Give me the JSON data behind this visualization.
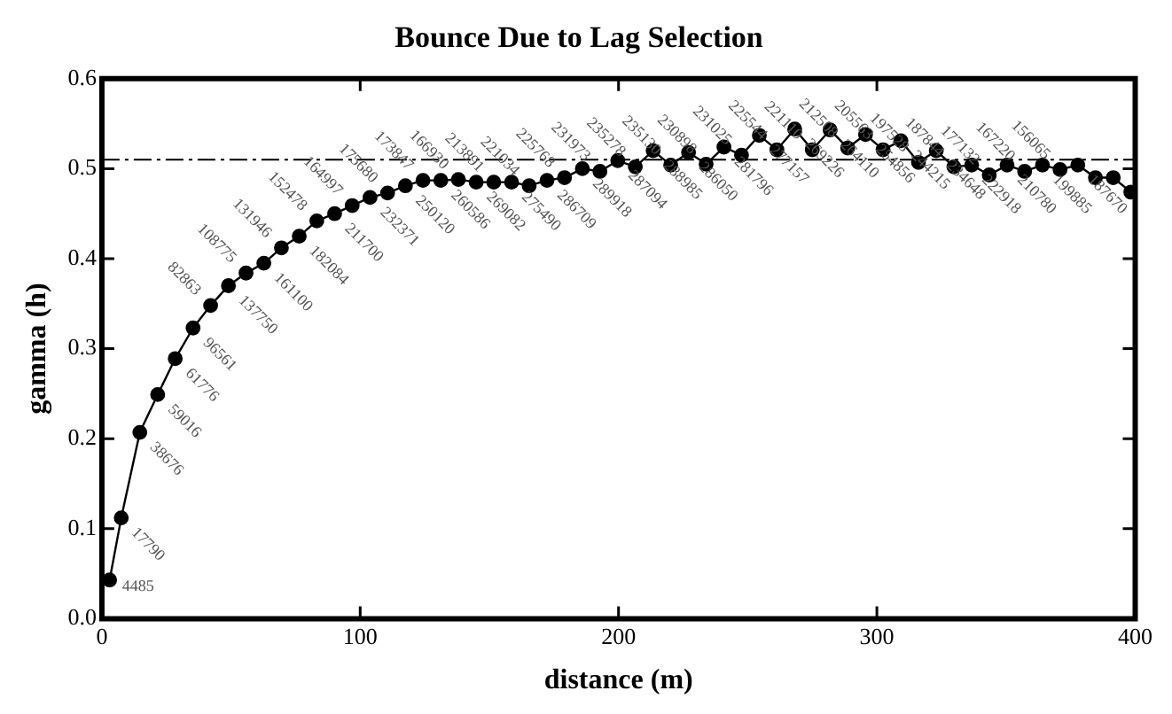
{
  "chart_data": {
    "type": "line",
    "title": "Bounce Due to Lag Selection",
    "xlabel": "distance (m)",
    "ylabel": "gamma (h)",
    "x": [
      3,
      7.5,
      14.7,
      21.6,
      28.4,
      35.3,
      42.1,
      49,
      55.8,
      62.7,
      69.5,
      76.4,
      83.2,
      90.1,
      96.9,
      103.8,
      110.6,
      117.5,
      124.3,
      131.2,
      138,
      144.9,
      151.7,
      158.6,
      165.4,
      172.3,
      179.1,
      186,
      192.8,
      199.7,
      206.5,
      213.4,
      220.2,
      227.1,
      233.9,
      240.8,
      247.6,
      254.5,
      261.3,
      268.2,
      275,
      281.9,
      288.7,
      295.6,
      302.4,
      309.3,
      316.1,
      323,
      329.8,
      336.7,
      343.5,
      350.4,
      357.2,
      364.1,
      370.9,
      377.8,
      384.6,
      391.5,
      398.3
    ],
    "series": [
      {
        "color": "#000000",
        "values": [
          0.043,
          0.112,
          0.207,
          0.249,
          0.289,
          0.323,
          0.348,
          0.37,
          0.384,
          0.395,
          0.412,
          0.425,
          0.442,
          0.45,
          0.459,
          0.468,
          0.473,
          0.481,
          0.487,
          0.487,
          0.488,
          0.485,
          0.485,
          0.485,
          0.481,
          0.487,
          0.49,
          0.5,
          0.497,
          0.509,
          0.502,
          0.52,
          0.504,
          0.518,
          0.505,
          0.524,
          0.515,
          0.537,
          0.521,
          0.544,
          0.521,
          0.543,
          0.523,
          0.538,
          0.521,
          0.531,
          0.507,
          0.52,
          0.502,
          0.504,
          0.493,
          0.504,
          0.497,
          0.504,
          0.499,
          0.504,
          0.49,
          0.49,
          0.474
        ]
      }
    ],
    "annotations": [
      {
        "text": "4485",
        "x": 3,
        "y": 0.043
      },
      {
        "text": "17790",
        "x": 7.5,
        "y": 0.112
      },
      {
        "text": "38676",
        "x": 14.7,
        "y": 0.207
      },
      {
        "text": "59016",
        "x": 21.6,
        "y": 0.249
      },
      {
        "text": "61776",
        "x": 28.4,
        "y": 0.289
      },
      {
        "text": "96561",
        "x": 35.3,
        "y": 0.323
      },
      {
        "text": "82863",
        "x": 42.1,
        "y": 0.348
      },
      {
        "text": "137750",
        "x": 49,
        "y": 0.37
      },
      {
        "text": "108775",
        "x": 55.8,
        "y": 0.384
      },
      {
        "text": "161100",
        "x": 62.7,
        "y": 0.395
      },
      {
        "text": "131946",
        "x": 69.5,
        "y": 0.412
      },
      {
        "text": "182084",
        "x": 76.4,
        "y": 0.425
      },
      {
        "text": "152478",
        "x": 83.2,
        "y": 0.442
      },
      {
        "text": "211700",
        "x": 90.1,
        "y": 0.45
      },
      {
        "text": "164997",
        "x": 96.9,
        "y": 0.459
      },
      {
        "text": "232371",
        "x": 103.8,
        "y": 0.468
      },
      {
        "text": "175680",
        "x": 110.6,
        "y": 0.473
      },
      {
        "text": "250120",
        "x": 117.5,
        "y": 0.481
      },
      {
        "text": "173847",
        "x": 124.3,
        "y": 0.487
      },
      {
        "text": "260586",
        "x": 131.2,
        "y": 0.487
      },
      {
        "text": "166930",
        "x": 138,
        "y": 0.488
      },
      {
        "text": "269082",
        "x": 144.9,
        "y": 0.485
      },
      {
        "text": "213891",
        "x": 151.7,
        "y": 0.485
      },
      {
        "text": "275490",
        "x": 158.6,
        "y": 0.485
      },
      {
        "text": "221034",
        "x": 165.4,
        "y": 0.481
      },
      {
        "text": "286709",
        "x": 172.3,
        "y": 0.487
      },
      {
        "text": "225768",
        "x": 179.1,
        "y": 0.49
      },
      {
        "text": "289918",
        "x": 186,
        "y": 0.5
      },
      {
        "text": "231973",
        "x": 192.8,
        "y": 0.497
      },
      {
        "text": "287094",
        "x": 199.7,
        "y": 0.509
      },
      {
        "text": "235278",
        "x": 206.5,
        "y": 0.502
      },
      {
        "text": "288985",
        "x": 213.4,
        "y": 0.52
      },
      {
        "text": "235130",
        "x": 220.2,
        "y": 0.504
      },
      {
        "text": "286050",
        "x": 227.1,
        "y": 0.518
      },
      {
        "text": "230898",
        "x": 233.9,
        "y": 0.505
      },
      {
        "text": "281796",
        "x": 240.8,
        "y": 0.524
      },
      {
        "text": "231025",
        "x": 247.6,
        "y": 0.515
      },
      {
        "text": "277157",
        "x": 254.5,
        "y": 0.537
      },
      {
        "text": "225544",
        "x": 261.3,
        "y": 0.521
      },
      {
        "text": "269226",
        "x": 268.2,
        "y": 0.544
      },
      {
        "text": "221110",
        "x": 275,
        "y": 0.521
      },
      {
        "text": "264110",
        "x": 281.9,
        "y": 0.543
      },
      {
        "text": "212508",
        "x": 288.7,
        "y": 0.523
      },
      {
        "text": "254856",
        "x": 295.6,
        "y": 0.538
      },
      {
        "text": "205563",
        "x": 302.4,
        "y": 0.521
      },
      {
        "text": "244215",
        "x": 309.3,
        "y": 0.531
      },
      {
        "text": "197528",
        "x": 316.1,
        "y": 0.507
      },
      {
        "text": "234648",
        "x": 323,
        "y": 0.52
      },
      {
        "text": "187844",
        "x": 329.8,
        "y": 0.502
      },
      {
        "text": "222918",
        "x": 336.7,
        "y": 0.504
      },
      {
        "text": "177132",
        "x": 343.5,
        "y": 0.493
      },
      {
        "text": "210780",
        "x": 350.4,
        "y": 0.504
      },
      {
        "text": "167220",
        "x": 357.2,
        "y": 0.497
      },
      {
        "text": "199885",
        "x": 364.1,
        "y": 0.504
      },
      {
        "text": "156065",
        "x": 370.9,
        "y": 0.499
      },
      {
        "text": "187670",
        "x": 377.8,
        "y": 0.504
      }
    ],
    "marker": "circle",
    "line_style": "solid",
    "xlim": [
      0,
      400
    ],
    "xticks": [
      0,
      100,
      200,
      300,
      400
    ],
    "ylim": [
      0,
      0.6
    ],
    "yticks": [
      {
        "value": 0,
        "label": "0.0"
      },
      {
        "value": 0.1,
        "label": "0.1"
      },
      {
        "value": 0.2,
        "label": "0.2"
      },
      {
        "value": 0.3,
        "label": "0.3"
      },
      {
        "value": 0.4,
        "label": "0.4"
      },
      {
        "value": 0.5,
        "label": "0.5"
      },
      {
        "value": 0.6,
        "label": "0.6"
      }
    ],
    "ref_lines": [
      {
        "axis": "y",
        "value": 0.51,
        "color": "#000000",
        "line_style": "dashed"
      }
    ],
    "grid": false,
    "legend": false
  }
}
